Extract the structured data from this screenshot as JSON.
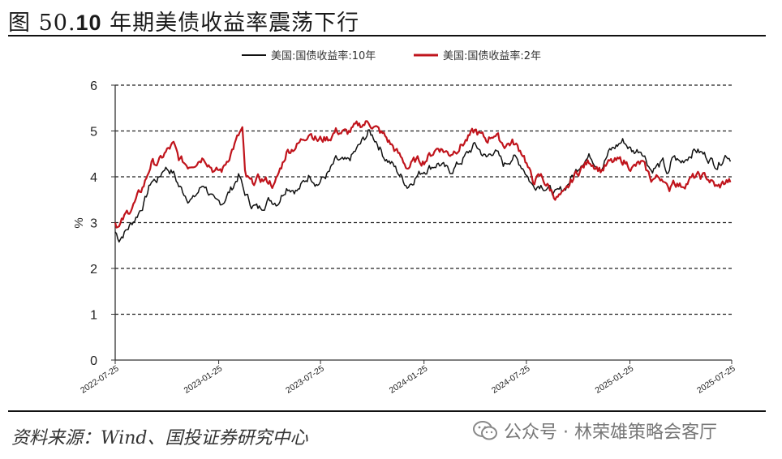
{
  "header": {
    "prefix": "图 50.",
    "number": "10",
    "text": " 年期美债收益率震荡下行"
  },
  "footer": {
    "source": "资料来源：Wind、国投证券研究中心",
    "watermark": "公众号 · 林荣雄策略会客厅",
    "watermark_icon": "wechat-icon"
  },
  "chart_data": {
    "type": "line",
    "ylabel": "%",
    "ylim": [
      0,
      6
    ],
    "yticks": [
      "0",
      "1",
      "2",
      "3",
      "4",
      "5",
      "6"
    ],
    "grid": "horizontal-dashed",
    "legend_position": "top-center",
    "x_start": "2022-07-25",
    "x_end": "2025-07-25",
    "xticks": [
      "2022-07-25",
      "2023-01-25",
      "2023-07-25",
      "2024-01-25",
      "2024-07-25",
      "2025-01-25",
      "2025-07-25"
    ],
    "series": [
      {
        "name": "美国:国债收益率:10年",
        "color": "#111111",
        "points": [
          [
            "2022-07-25",
            2.8
          ],
          [
            "2022-08-01",
            2.65
          ],
          [
            "2022-08-15",
            2.85
          ],
          [
            "2022-08-30",
            3.1
          ],
          [
            "2022-09-15",
            3.45
          ],
          [
            "2022-09-27",
            3.9
          ],
          [
            "2022-10-10",
            3.95
          ],
          [
            "2022-10-21",
            4.22
          ],
          [
            "2022-11-05",
            4.1
          ],
          [
            "2022-11-15",
            3.8
          ],
          [
            "2022-12-01",
            3.55
          ],
          [
            "2022-12-10",
            3.5
          ],
          [
            "2022-12-30",
            3.85
          ],
          [
            "2023-01-19",
            3.4
          ],
          [
            "2023-02-01",
            3.45
          ],
          [
            "2023-02-20",
            3.8
          ],
          [
            "2023-03-02",
            4.05
          ],
          [
            "2023-03-10",
            3.7
          ],
          [
            "2023-03-24",
            3.4
          ],
          [
            "2023-04-06",
            3.3
          ],
          [
            "2023-04-25",
            3.5
          ],
          [
            "2023-05-10",
            3.45
          ],
          [
            "2023-05-26",
            3.8
          ],
          [
            "2023-06-15",
            3.7
          ],
          [
            "2023-07-06",
            4.05
          ],
          [
            "2023-07-20",
            3.85
          ],
          [
            "2023-08-10",
            4.1
          ],
          [
            "2023-08-21",
            4.35
          ],
          [
            "2023-09-10",
            4.3
          ],
          [
            "2023-09-28",
            4.6
          ],
          [
            "2023-10-19",
            4.98
          ],
          [
            "2023-11-01",
            4.8
          ],
          [
            "2023-11-15",
            4.45
          ],
          [
            "2023-12-01",
            4.25
          ],
          [
            "2023-12-27",
            3.8
          ],
          [
            "2024-01-10",
            4.0
          ],
          [
            "2024-01-25",
            4.15
          ],
          [
            "2024-02-20",
            4.3
          ],
          [
            "2024-03-10",
            4.1
          ],
          [
            "2024-04-01",
            4.35
          ],
          [
            "2024-04-25",
            4.7
          ],
          [
            "2024-05-15",
            4.4
          ],
          [
            "2024-05-29",
            4.6
          ],
          [
            "2024-06-15",
            4.25
          ],
          [
            "2024-07-01",
            4.45
          ],
          [
            "2024-07-20",
            4.2
          ],
          [
            "2024-08-05",
            3.8
          ],
          [
            "2024-08-20",
            3.85
          ],
          [
            "2024-09-16",
            3.62
          ],
          [
            "2024-10-01",
            3.75
          ],
          [
            "2024-10-20",
            4.1
          ],
          [
            "2024-11-01",
            4.35
          ],
          [
            "2024-11-15",
            4.45
          ],
          [
            "2024-12-05",
            4.2
          ],
          [
            "2024-12-20",
            4.55
          ],
          [
            "2025-01-13",
            4.79
          ],
          [
            "2025-01-30",
            4.55
          ],
          [
            "2025-02-15",
            4.6
          ],
          [
            "2025-03-04",
            4.15
          ],
          [
            "2025-03-25",
            4.3
          ],
          [
            "2025-04-04",
            4.0
          ],
          [
            "2025-04-11",
            4.45
          ],
          [
            "2025-04-25",
            4.3
          ],
          [
            "2025-05-21",
            4.6
          ],
          [
            "2025-06-10",
            4.45
          ],
          [
            "2025-06-30",
            4.25
          ],
          [
            "2025-07-15",
            4.5
          ],
          [
            "2025-07-25",
            4.4
          ]
        ]
      },
      {
        "name": "美国:国债收益率:2年",
        "color": "#c0141c",
        "points": [
          [
            "2022-07-25",
            3.0
          ],
          [
            "2022-08-01",
            2.9
          ],
          [
            "2022-08-15",
            3.2
          ],
          [
            "2022-08-30",
            3.45
          ],
          [
            "2022-09-15",
            3.85
          ],
          [
            "2022-09-27",
            4.3
          ],
          [
            "2022-10-10",
            4.3
          ],
          [
            "2022-10-21",
            4.5
          ],
          [
            "2022-11-05",
            4.7
          ],
          [
            "2022-11-15",
            4.4
          ],
          [
            "2022-12-01",
            4.25
          ],
          [
            "2022-12-10",
            4.3
          ],
          [
            "2022-12-30",
            4.45
          ],
          [
            "2023-01-19",
            4.1
          ],
          [
            "2023-02-01",
            4.15
          ],
          [
            "2023-02-20",
            4.65
          ],
          [
            "2023-03-08",
            5.05
          ],
          [
            "2023-03-13",
            4.0
          ],
          [
            "2023-03-24",
            3.85
          ],
          [
            "2023-04-06",
            3.95
          ],
          [
            "2023-04-25",
            3.9
          ],
          [
            "2023-05-04",
            3.8
          ],
          [
            "2023-05-26",
            4.55
          ],
          [
            "2023-06-15",
            4.7
          ],
          [
            "2023-07-06",
            5.0
          ],
          [
            "2023-07-20",
            4.8
          ],
          [
            "2023-08-10",
            4.85
          ],
          [
            "2023-08-21",
            5.0
          ],
          [
            "2023-09-10",
            4.95
          ],
          [
            "2023-09-28",
            5.1
          ],
          [
            "2023-10-19",
            5.2
          ],
          [
            "2023-11-01",
            5.05
          ],
          [
            "2023-11-15",
            4.9
          ],
          [
            "2023-12-01",
            4.65
          ],
          [
            "2023-12-27",
            4.2
          ],
          [
            "2024-01-10",
            4.35
          ],
          [
            "2024-01-25",
            4.35
          ],
          [
            "2024-02-20",
            4.65
          ],
          [
            "2024-03-10",
            4.5
          ],
          [
            "2024-04-01",
            4.7
          ],
          [
            "2024-04-25",
            5.0
          ],
          [
            "2024-05-15",
            4.8
          ],
          [
            "2024-05-29",
            4.95
          ],
          [
            "2024-06-15",
            4.7
          ],
          [
            "2024-07-01",
            4.75
          ],
          [
            "2024-07-20",
            4.5
          ],
          [
            "2024-08-05",
            3.9
          ],
          [
            "2024-08-20",
            4.0
          ],
          [
            "2024-09-16",
            3.55
          ],
          [
            "2024-10-01",
            3.6
          ],
          [
            "2024-10-20",
            4.05
          ],
          [
            "2024-11-01",
            4.2
          ],
          [
            "2024-11-15",
            4.35
          ],
          [
            "2024-12-05",
            4.15
          ],
          [
            "2024-12-20",
            4.3
          ],
          [
            "2025-01-13",
            4.35
          ],
          [
            "2025-01-30",
            4.2
          ],
          [
            "2025-02-15",
            4.3
          ],
          [
            "2025-03-04",
            3.95
          ],
          [
            "2025-03-25",
            4.0
          ],
          [
            "2025-04-04",
            3.65
          ],
          [
            "2025-04-11",
            3.95
          ],
          [
            "2025-04-25",
            3.8
          ],
          [
            "2025-05-21",
            4.0
          ],
          [
            "2025-06-10",
            4.0
          ],
          [
            "2025-06-30",
            3.75
          ],
          [
            "2025-07-15",
            3.9
          ],
          [
            "2025-07-25",
            3.9
          ]
        ]
      }
    ]
  }
}
